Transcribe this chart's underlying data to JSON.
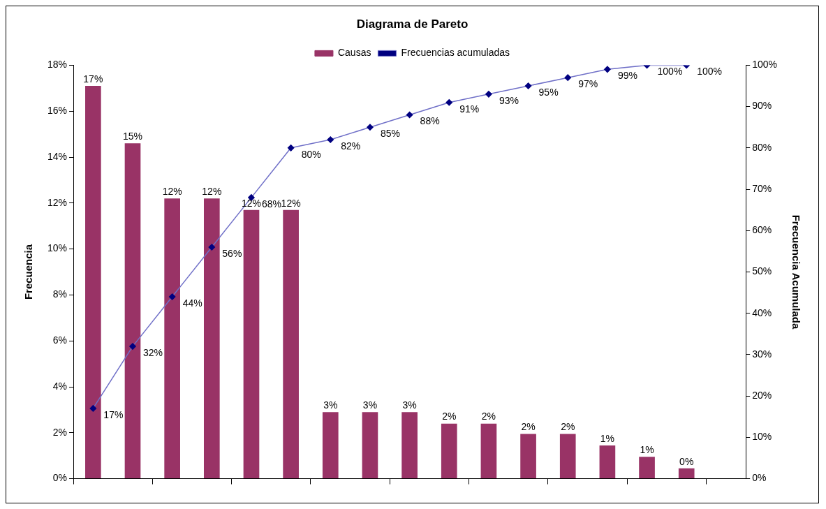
{
  "chart_data": {
    "type": "bar",
    "title": "Diagrama de Pareto",
    "ylabel": "Frecuencia",
    "y2label": "Frecuencia Acumulada",
    "categories": [
      null,
      null,
      null,
      null,
      null,
      null,
      null,
      null,
      null,
      null,
      null,
      null,
      null,
      null,
      null,
      null,
      null
    ],
    "series": [
      {
        "name": "Causas",
        "color": "#993366",
        "values": [
          17.1,
          14.6,
          12.2,
          12.2,
          11.7,
          11.7,
          2.9,
          2.9,
          2.9,
          2.4,
          2.4,
          1.95,
          1.95,
          1.45,
          0.95,
          0.45,
          null
        ],
        "value_labels": [
          "17%",
          "15%",
          "12%",
          "12%",
          "12%",
          "12%",
          "3%",
          "3%",
          "3%",
          "2%",
          "2%",
          "2%",
          "2%",
          "1%",
          "1%",
          "0%",
          null
        ]
      },
      {
        "name": "Frecuencias acumuladas",
        "type": "line",
        "axis": "y2",
        "color": "#000080",
        "marker": "diamond",
        "values": [
          17,
          32,
          44,
          56,
          68,
          80,
          82,
          85,
          88,
          91,
          93,
          95,
          97,
          99,
          100,
          100,
          null
        ],
        "value_labels": [
          "17%",
          "32%",
          "44%",
          "56%",
          "68%",
          "80%",
          "82%",
          "85%",
          "88%",
          "91%",
          "93%",
          "95%",
          "97%",
          "99%",
          "100%",
          "100%",
          null
        ]
      }
    ],
    "ylim": [
      0,
      18
    ],
    "yticks": [
      {
        "value": 0,
        "label": "0%"
      },
      {
        "value": 2,
        "label": "2%"
      },
      {
        "value": 4,
        "label": "4%"
      },
      {
        "value": 6,
        "label": "6%"
      },
      {
        "value": 8,
        "label": "8%"
      },
      {
        "value": 10,
        "label": "10%"
      },
      {
        "value": 12,
        "label": "12%"
      },
      {
        "value": 14,
        "label": "14%"
      },
      {
        "value": 16,
        "label": "16%"
      },
      {
        "value": 18,
        "label": "18%"
      }
    ],
    "y2lim": [
      0,
      100
    ],
    "y2ticks": [
      {
        "value": 0,
        "label": "0%"
      },
      {
        "value": 10,
        "label": "10%"
      },
      {
        "value": 20,
        "label": "20%"
      },
      {
        "value": 30,
        "label": "30%"
      },
      {
        "value": 40,
        "label": "40%"
      },
      {
        "value": 50,
        "label": "50%"
      },
      {
        "value": 60,
        "label": "60%"
      },
      {
        "value": 70,
        "label": "70%"
      },
      {
        "value": 80,
        "label": "80%"
      },
      {
        "value": 90,
        "label": "90%"
      },
      {
        "value": 100,
        "label": "100%"
      }
    ],
    "grid": false,
    "legend": "top",
    "line_style": "solid"
  }
}
